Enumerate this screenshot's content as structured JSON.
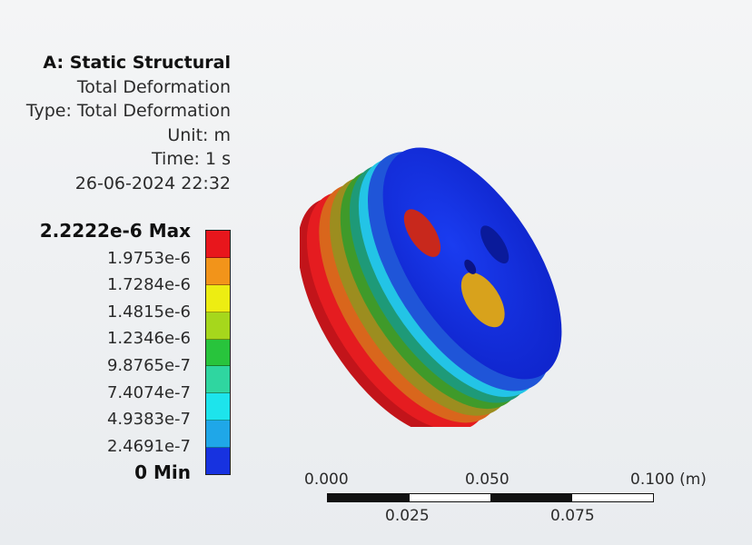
{
  "header": {
    "title": "A: Static Structural",
    "result": "Total Deformation",
    "type": "Type: Total Deformation",
    "unit": "Unit: m",
    "time": "Time: 1 s",
    "timestamp": "26-06-2024 22:32"
  },
  "legend": {
    "labels": [
      "2.2222e-6 Max",
      "1.9753e-6",
      "1.7284e-6",
      "1.4815e-6",
      "1.2346e-6",
      "9.8765e-7",
      "7.4074e-7",
      "4.9383e-7",
      "2.4691e-7",
      "0 Min"
    ],
    "colors": [
      "#e8161c",
      "#f2941a",
      "#eded12",
      "#a6d71c",
      "#28c43c",
      "#2fd6a0",
      "#1de4ec",
      "#1fa7e8",
      "#1732e0"
    ]
  },
  "scale": {
    "top_labels": [
      "0.000",
      "0.050",
      "0.100 (m)"
    ],
    "bottom_labels": [
      "0.025",
      "0.075"
    ]
  }
}
